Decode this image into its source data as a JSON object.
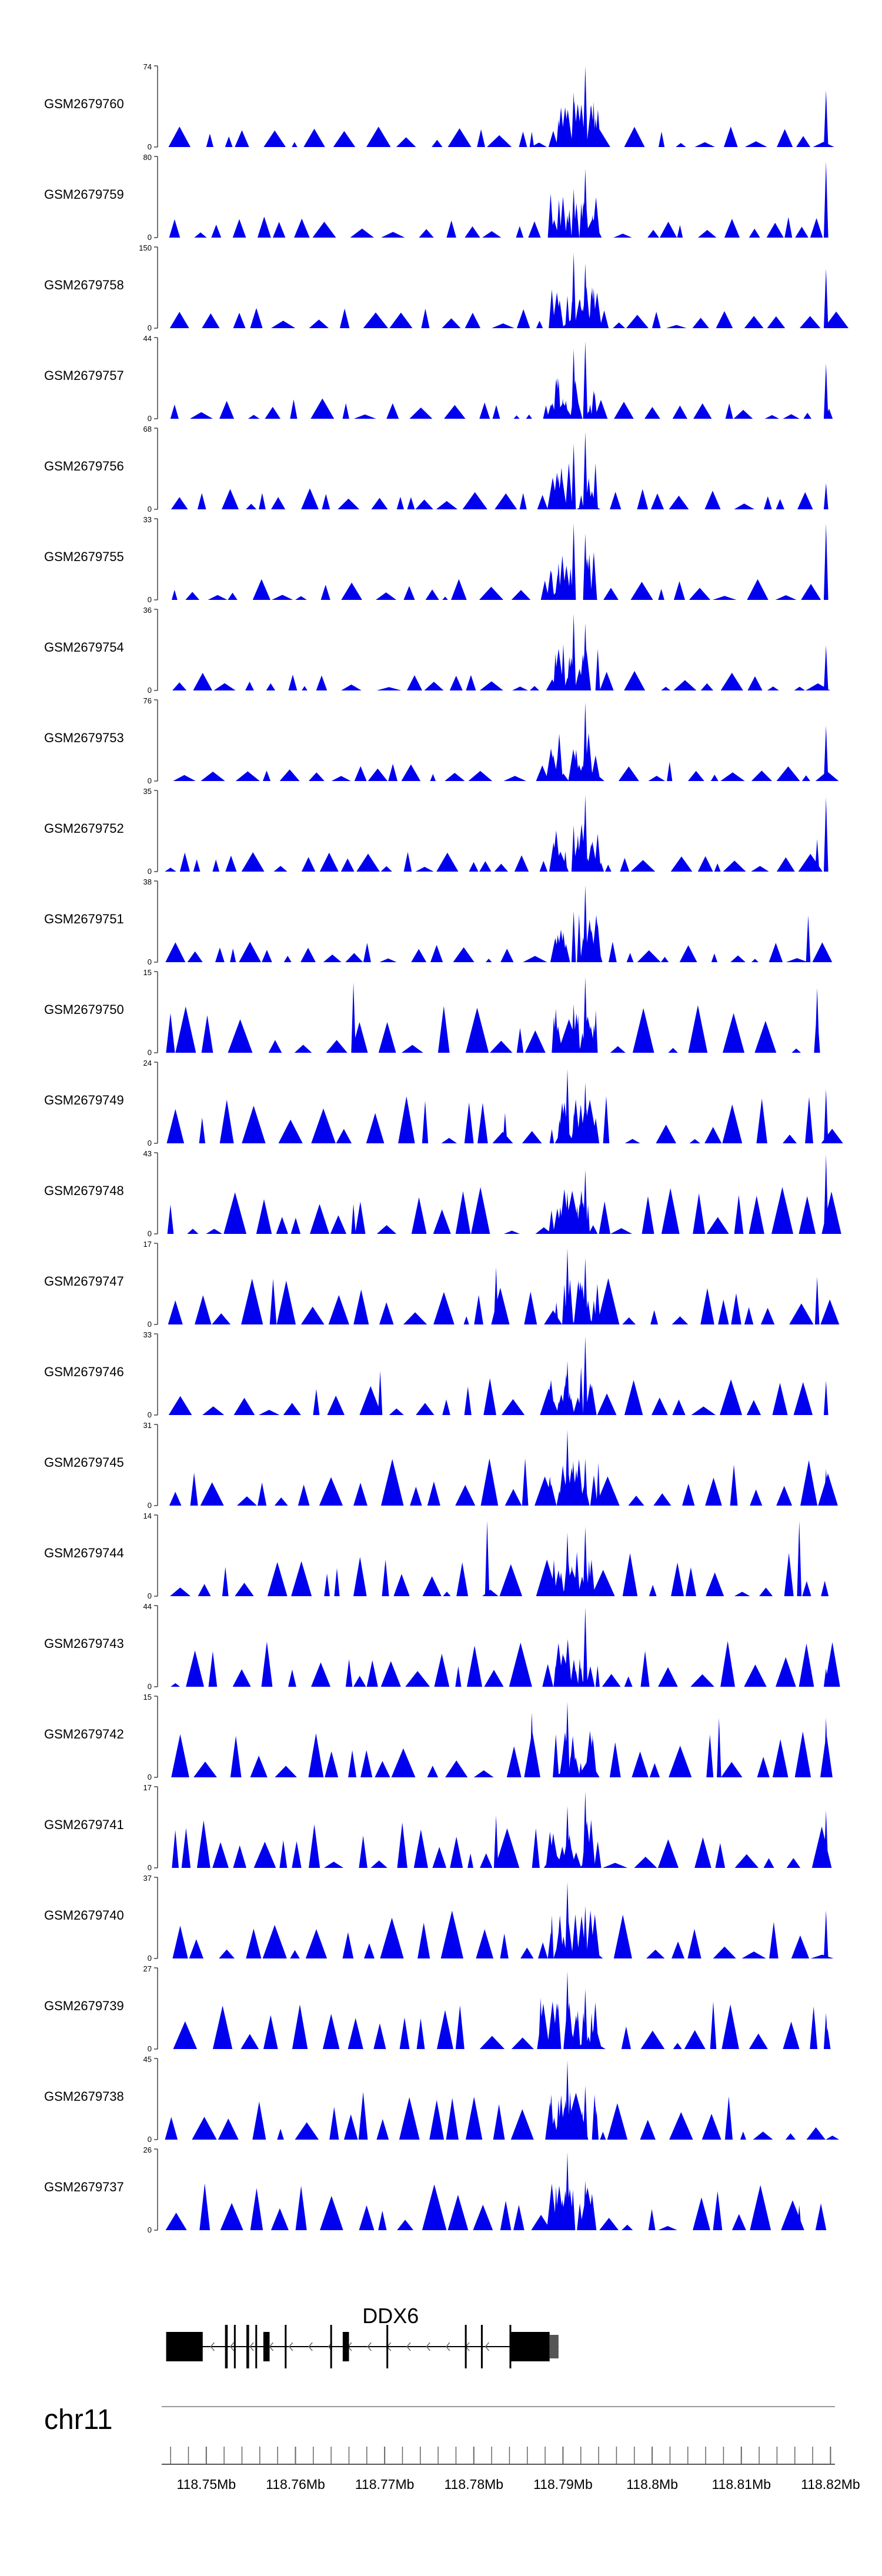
{
  "chart_data": {
    "type": "area",
    "title": "",
    "xlabel": "",
    "ylabel": "",
    "chromosome": "chr11",
    "xlim": [
      118.745,
      118.8205
    ],
    "xticks": [
      "118.75Mb",
      "118.76Mb",
      "118.77Mb",
      "118.78Mb",
      "118.79Mb",
      "118.8Mb",
      "118.81Mb",
      "118.82Mb"
    ],
    "color": "#0000ee",
    "tracks": [
      {
        "name": "GSM2679760",
        "ymax": "74",
        "ymin": "0",
        "seed": 1,
        "peaks": [
          [
            118.7912,
            50
          ],
          [
            118.7925,
            74
          ],
          [
            118.8195,
            52
          ],
          [
            118.7865,
            14
          ],
          [
            118.7895,
            25
          ]
        ]
      },
      {
        "name": "GSM2679759",
        "ymax": "80",
        "ymin": "0",
        "seed": 2,
        "peaks": [
          [
            118.7912,
            48
          ],
          [
            118.7925,
            68
          ],
          [
            118.8195,
            75
          ],
          [
            118.7905,
            22
          ]
        ]
      },
      {
        "name": "GSM2679758",
        "ymax": "150",
        "ymin": "0",
        "seed": 3,
        "peaks": [
          [
            118.7912,
            140
          ],
          [
            118.7925,
            120
          ],
          [
            118.8195,
            110
          ],
          [
            118.7905,
            60
          ]
        ]
      },
      {
        "name": "GSM2679757",
        "ymax": "44",
        "ymin": "0",
        "seed": 4,
        "peaks": [
          [
            118.7912,
            38
          ],
          [
            118.7925,
            42
          ],
          [
            118.8195,
            30
          ],
          [
            118.7895,
            22
          ]
        ]
      },
      {
        "name": "GSM2679756",
        "ymax": "68",
        "ymin": "0",
        "seed": 5,
        "peaks": [
          [
            118.7912,
            55
          ],
          [
            118.7925,
            65
          ],
          [
            118.8195,
            22
          ],
          [
            118.7895,
            28
          ]
        ]
      },
      {
        "name": "GSM2679755",
        "ymax": "33",
        "ymin": "0",
        "seed": 6,
        "peaks": [
          [
            118.7912,
            31
          ],
          [
            118.7925,
            27
          ],
          [
            118.8195,
            31
          ],
          [
            118.7895,
            15
          ]
        ]
      },
      {
        "name": "GSM2679754",
        "ymax": "36",
        "ymin": "0",
        "seed": 7,
        "peaks": [
          [
            118.7912,
            34
          ],
          [
            118.7925,
            30
          ],
          [
            118.8195,
            20
          ],
          [
            118.7895,
            14
          ]
        ]
      },
      {
        "name": "GSM2679753",
        "ymax": "76",
        "ymin": "0",
        "seed": 8,
        "peaks": [
          [
            118.7925,
            74
          ],
          [
            118.7912,
            20
          ],
          [
            118.8195,
            52
          ],
          [
            118.7895,
            10
          ]
        ]
      },
      {
        "name": "GSM2679752",
        "ymax": "35",
        "ymin": "0",
        "seed": 9,
        "peaks": [
          [
            118.7925,
            33
          ],
          [
            118.7912,
            20
          ],
          [
            118.8195,
            32
          ],
          [
            118.8185,
            14
          ]
        ]
      },
      {
        "name": "GSM2679751",
        "ymax": "38",
        "ymin": "0",
        "seed": 10,
        "peaks": [
          [
            118.7925,
            36
          ],
          [
            118.7912,
            24
          ],
          [
            118.8175,
            22
          ],
          [
            118.7895,
            12
          ]
        ]
      },
      {
        "name": "GSM2679750",
        "ymax": "15",
        "ymin": "0",
        "seed": 11,
        "peaks": [
          [
            118.7925,
            14
          ],
          [
            118.7665,
            13
          ],
          [
            118.8185,
            12
          ],
          [
            118.7912,
            9
          ]
        ]
      },
      {
        "name": "GSM2679749",
        "ymax": "24",
        "ymin": "0",
        "seed": 12,
        "peaks": [
          [
            118.7905,
            22
          ],
          [
            118.7925,
            18
          ],
          [
            118.8195,
            16
          ],
          [
            118.7835,
            9
          ]
        ]
      },
      {
        "name": "GSM2679748",
        "ymax": "43",
        "ymin": "0",
        "seed": 13,
        "peaks": [
          [
            118.7925,
            34
          ],
          [
            118.7905,
            22
          ],
          [
            118.8195,
            42
          ],
          [
            118.7665,
            16
          ]
        ]
      },
      {
        "name": "GSM2679747",
        "ymax": "17",
        "ymin": "0",
        "seed": 14,
        "peaks": [
          [
            118.7905,
            16
          ],
          [
            118.7925,
            14
          ],
          [
            118.7825,
            12
          ],
          [
            118.8185,
            10
          ]
        ]
      },
      {
        "name": "GSM2679746",
        "ymax": "33",
        "ymin": "0",
        "seed": 15,
        "peaks": [
          [
            118.7925,
            32
          ],
          [
            118.7905,
            22
          ],
          [
            118.7695,
            18
          ],
          [
            118.8195,
            14
          ]
        ]
      },
      {
        "name": "GSM2679745",
        "ymax": "31",
        "ymin": "0",
        "seed": 16,
        "peaks": [
          [
            118.7905,
            29
          ],
          [
            118.7925,
            18
          ],
          [
            118.8195,
            14
          ]
        ]
      },
      {
        "name": "GSM2679744",
        "ymax": "14",
        "ymin": "0",
        "seed": 17,
        "peaks": [
          [
            118.7815,
            13
          ],
          [
            118.7905,
            11
          ],
          [
            118.8165,
            13
          ],
          [
            118.7925,
            12
          ]
        ]
      },
      {
        "name": "GSM2679743",
        "ymax": "44",
        "ymin": "0",
        "seed": 18,
        "peaks": [
          [
            118.7925,
            43
          ],
          [
            118.7905,
            18
          ],
          [
            118.8195,
            10
          ]
        ]
      },
      {
        "name": "GSM2679742",
        "ymax": "15",
        "ymin": "0",
        "seed": 19,
        "peaks": [
          [
            118.7905,
            14
          ],
          [
            118.8075,
            11
          ],
          [
            118.7865,
            12
          ],
          [
            118.8195,
            11
          ]
        ]
      },
      {
        "name": "GSM2679741",
        "ymax": "17",
        "ymin": "0",
        "seed": 20,
        "peaks": [
          [
            118.7925,
            16
          ],
          [
            118.7905,
            13
          ],
          [
            118.8195,
            12
          ],
          [
            118.7825,
            11
          ]
        ]
      },
      {
        "name": "GSM2679740",
        "ymax": "37",
        "ymin": "0",
        "seed": 21,
        "peaks": [
          [
            118.7905,
            35
          ],
          [
            118.7925,
            24
          ],
          [
            118.8195,
            22
          ]
        ]
      },
      {
        "name": "GSM2679739",
        "ymax": "27",
        "ymin": "0",
        "seed": 22,
        "peaks": [
          [
            118.7905,
            26
          ],
          [
            118.7925,
            20
          ],
          [
            118.7875,
            17
          ],
          [
            118.8195,
            12
          ]
        ]
      },
      {
        "name": "GSM2679738",
        "ymax": "45",
        "ymin": "0",
        "seed": 23,
        "peaks": [
          [
            118.7905,
            44
          ],
          [
            118.7925,
            30
          ],
          [
            118.7895,
            22
          ]
        ]
      },
      {
        "name": "GSM2679737",
        "ymax": "26",
        "ymin": "0",
        "seed": 24,
        "peaks": [
          [
            118.7905,
            25
          ],
          [
            118.7925,
            16
          ],
          [
            118.8165,
            8
          ]
        ]
      }
    ],
    "gene": {
      "name": "DDX6",
      "start": 118.7455,
      "end": 118.7895,
      "strand": "-",
      "exons": [
        {
          "start": 118.7455,
          "end": 118.7496,
          "h": "thick"
        },
        {
          "start": 118.7521,
          "end": 118.7524,
          "h": "thick"
        },
        {
          "start": 118.7531,
          "end": 118.7533,
          "h": "thick"
        },
        {
          "start": 118.7545,
          "end": 118.7548,
          "h": "thick"
        },
        {
          "start": 118.7555,
          "end": 118.7557,
          "h": "thick"
        },
        {
          "start": 118.7564,
          "end": 118.7571,
          "h": "thick"
        },
        {
          "start": 118.7588,
          "end": 118.759,
          "h": "thick"
        },
        {
          "start": 118.7639,
          "end": 118.7641,
          "h": "thick"
        },
        {
          "start": 118.7653,
          "end": 118.766,
          "h": "thick"
        },
        {
          "start": 118.7702,
          "end": 118.7704,
          "h": "thick"
        },
        {
          "start": 118.779,
          "end": 118.7792,
          "h": "thick"
        },
        {
          "start": 118.7808,
          "end": 118.781,
          "h": "thick"
        },
        {
          "start": 118.784,
          "end": 118.7842,
          "h": "thick"
        },
        {
          "start": 118.7842,
          "end": 118.7885,
          "h": "thick"
        },
        {
          "start": 118.7885,
          "end": 118.7895,
          "h": "thin"
        }
      ]
    }
  }
}
